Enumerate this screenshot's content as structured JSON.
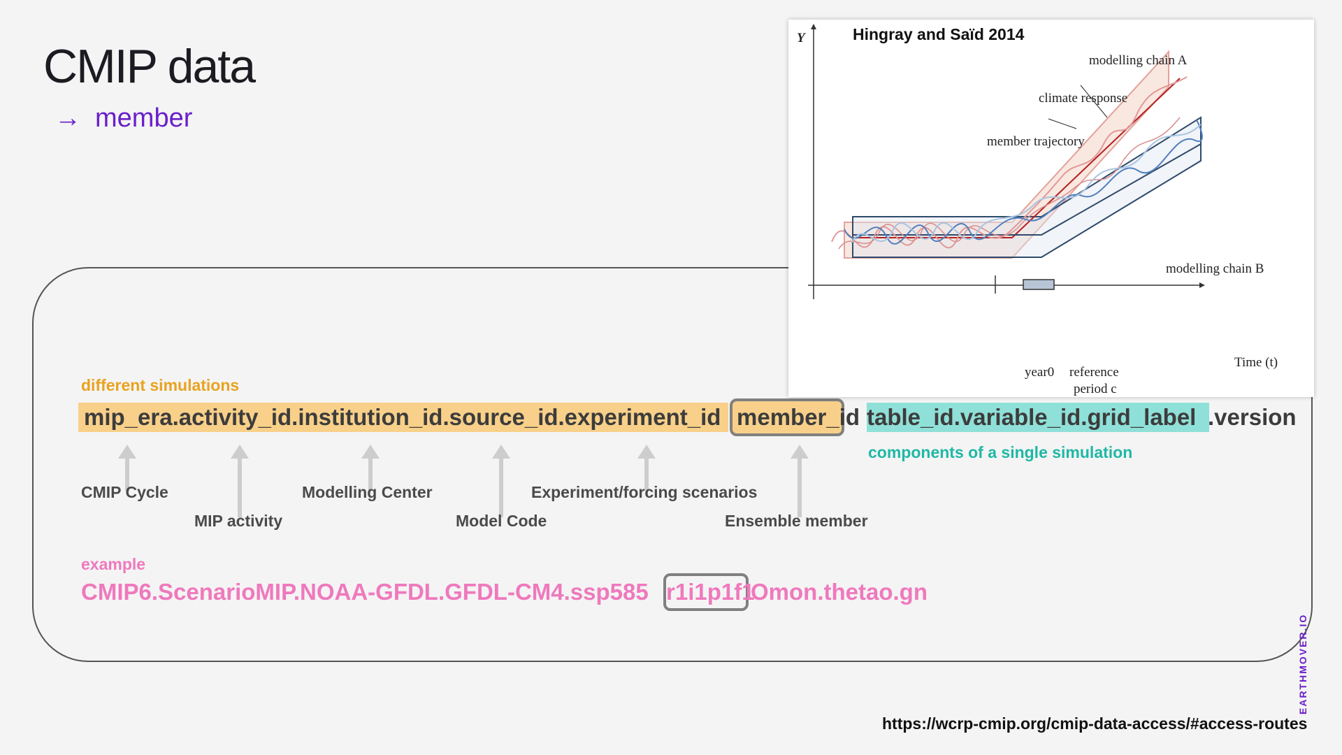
{
  "slide": {
    "title": "CMIP data",
    "subtitle_arrow": "→",
    "subtitle": "member"
  },
  "structure": {
    "top_label": "different simulations",
    "segments": {
      "orange_part": "mip_era.activity_id.institution_id.source_id.experiment_id",
      "member": "member_id",
      "teal_part": "table_id.variable_id.grid_label",
      "tail": ".version"
    },
    "components_label": "components of a single simulation",
    "components": [
      "CMIP Cycle",
      "MIP activity",
      "Modelling Center",
      "Model Code",
      "Experiment/forcing scenarios",
      "Ensemble member"
    ]
  },
  "example": {
    "label": "example",
    "part1": "CMIP6.ScenarioMIP.NOAA-GFDL.GFDL-CM4.ssp585",
    "member": "r1i1p1f1",
    "part2": "Omon.thetao.gn"
  },
  "figure": {
    "title": "Hingray and Saïd 2014",
    "y_axis": "Y",
    "x_axis": "Time (t)",
    "labels": {
      "chain_a": "modelling chain A",
      "climate_response": "climate response",
      "member_trajectory": "member trajectory",
      "chain_b": "modelling chain B",
      "year0": "year0",
      "reference": "reference",
      "period": "period c"
    }
  },
  "footer": {
    "url": "https://wcrp-cmip.org/cmip-data-access/#access-routes",
    "brand": "EARTHMOVER.IO"
  },
  "colors": {
    "accent_purple": "#6a1fc9",
    "orange": "#e9a21f",
    "orange_highlight": "#f8d089",
    "teal": "#1fb8a5",
    "teal_highlight": "#8fe0d8",
    "pink": "#ef79bd"
  }
}
